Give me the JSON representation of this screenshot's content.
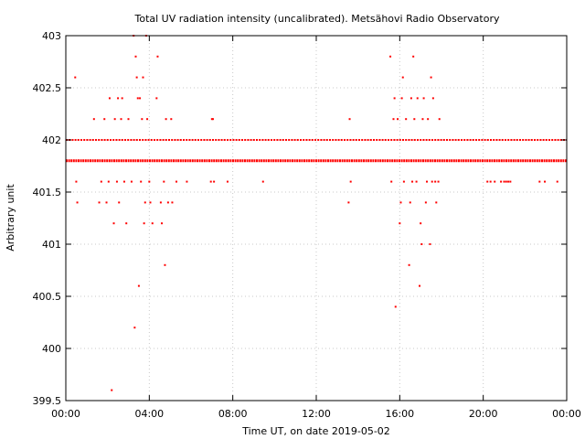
{
  "chart_data": {
    "type": "scatter",
    "title": "Total UV radiation intensity (uncalibrated). Metsähovi Radio Observatory",
    "xlabel": "Time UT, on date 2019-05-02",
    "ylabel": "Arbitrary unit",
    "x_unit": "hours UT",
    "xlim": [
      0,
      24
    ],
    "ylim": [
      399.5,
      403
    ],
    "x_ticks": [
      {
        "value": 0,
        "label": "00:00"
      },
      {
        "value": 4,
        "label": "04:00"
      },
      {
        "value": 8,
        "label": "08:00"
      },
      {
        "value": 12,
        "label": "12:00"
      },
      {
        "value": 16,
        "label": "16:00"
      },
      {
        "value": 20,
        "label": "20:00"
      },
      {
        "value": 24,
        "label": "00:00"
      }
    ],
    "y_ticks": [
      {
        "value": 399.5,
        "label": "399.5"
      },
      {
        "value": 400,
        "label": "400"
      },
      {
        "value": 400.5,
        "label": "400.5"
      },
      {
        "value": 401,
        "label": "401"
      },
      {
        "value": 401.5,
        "label": "401.5"
      },
      {
        "value": 402,
        "label": "402"
      },
      {
        "value": 402.5,
        "label": "402.5"
      },
      {
        "value": 403,
        "label": "403"
      }
    ],
    "grid": true,
    "marker_color": "#ff0000",
    "series": [
      {
        "continuous_levels": [
          {
            "y": 401.8,
            "x_range": [
              0,
              24
            ]
          },
          {
            "y": 402.0,
            "x_range": [
              0,
              24
            ]
          }
        ],
        "points": [
          {
            "x": 0.45,
            "y": 402.6
          },
          {
            "x": 0.5,
            "y": 401.6
          },
          {
            "x": 0.55,
            "y": 401.4
          },
          {
            "x": 1.35,
            "y": 402.2
          },
          {
            "x": 1.6,
            "y": 401.4
          },
          {
            "x": 1.7,
            "y": 401.6
          },
          {
            "x": 1.85,
            "y": 402.2
          },
          {
            "x": 1.95,
            "y": 401.4
          },
          {
            "x": 2.05,
            "y": 401.6
          },
          {
            "x": 2.1,
            "y": 402.4
          },
          {
            "x": 2.2,
            "y": 399.6
          },
          {
            "x": 2.3,
            "y": 401.2
          },
          {
            "x": 2.35,
            "y": 402.2
          },
          {
            "x": 2.45,
            "y": 401.6
          },
          {
            "x": 2.5,
            "y": 402.4
          },
          {
            "x": 2.55,
            "y": 401.4
          },
          {
            "x": 2.65,
            "y": 402.2
          },
          {
            "x": 2.7,
            "y": 402.4
          },
          {
            "x": 2.8,
            "y": 401.6
          },
          {
            "x": 2.9,
            "y": 401.2
          },
          {
            "x": 3.0,
            "y": 402.2
          },
          {
            "x": 3.15,
            "y": 401.6
          },
          {
            "x": 3.25,
            "y": 403.0
          },
          {
            "x": 3.3,
            "y": 400.2
          },
          {
            "x": 3.35,
            "y": 402.8
          },
          {
            "x": 3.4,
            "y": 402.6
          },
          {
            "x": 3.45,
            "y": 402.4
          },
          {
            "x": 3.5,
            "y": 400.6
          },
          {
            "x": 3.55,
            "y": 402.4
          },
          {
            "x": 3.6,
            "y": 401.6
          },
          {
            "x": 3.65,
            "y": 402.2
          },
          {
            "x": 3.7,
            "y": 402.6
          },
          {
            "x": 3.75,
            "y": 401.2
          },
          {
            "x": 3.8,
            "y": 401.4
          },
          {
            "x": 3.85,
            "y": 403.0
          },
          {
            "x": 3.9,
            "y": 402.2
          },
          {
            "x": 4.0,
            "y": 401.6
          },
          {
            "x": 4.05,
            "y": 401.4
          },
          {
            "x": 4.15,
            "y": 401.2
          },
          {
            "x": 4.35,
            "y": 402.4
          },
          {
            "x": 4.4,
            "y": 402.8
          },
          {
            "x": 4.55,
            "y": 401.4
          },
          {
            "x": 4.6,
            "y": 401.2
          },
          {
            "x": 4.7,
            "y": 401.6
          },
          {
            "x": 4.75,
            "y": 400.8
          },
          {
            "x": 4.8,
            "y": 402.2
          },
          {
            "x": 4.9,
            "y": 401.4
          },
          {
            "x": 5.05,
            "y": 402.2
          },
          {
            "x": 5.1,
            "y": 401.4
          },
          {
            "x": 5.3,
            "y": 401.6
          },
          {
            "x": 5.8,
            "y": 401.6
          },
          {
            "x": 6.95,
            "y": 401.6
          },
          {
            "x": 7.0,
            "y": 402.2
          },
          {
            "x": 7.05,
            "y": 402.2
          },
          {
            "x": 7.1,
            "y": 401.6
          },
          {
            "x": 7.75,
            "y": 401.6
          },
          {
            "x": 9.45,
            "y": 401.6
          },
          {
            "x": 13.55,
            "y": 401.4
          },
          {
            "x": 13.6,
            "y": 402.2
          },
          {
            "x": 13.65,
            "y": 401.6
          },
          {
            "x": 15.55,
            "y": 402.8
          },
          {
            "x": 15.6,
            "y": 401.6
          },
          {
            "x": 15.7,
            "y": 402.2
          },
          {
            "x": 15.75,
            "y": 402.4
          },
          {
            "x": 15.8,
            "y": 400.4
          },
          {
            "x": 15.9,
            "y": 402.2
          },
          {
            "x": 16.0,
            "y": 401.2
          },
          {
            "x": 16.05,
            "y": 401.4
          },
          {
            "x": 16.1,
            "y": 402.4
          },
          {
            "x": 16.15,
            "y": 402.6
          },
          {
            "x": 16.2,
            "y": 401.6
          },
          {
            "x": 16.3,
            "y": 402.2
          },
          {
            "x": 16.45,
            "y": 400.8
          },
          {
            "x": 16.5,
            "y": 401.4
          },
          {
            "x": 16.55,
            "y": 402.4
          },
          {
            "x": 16.6,
            "y": 401.6
          },
          {
            "x": 16.65,
            "y": 402.8
          },
          {
            "x": 16.7,
            "y": 402.2
          },
          {
            "x": 16.8,
            "y": 401.6
          },
          {
            "x": 16.85,
            "y": 402.4
          },
          {
            "x": 16.95,
            "y": 400.6
          },
          {
            "x": 17.0,
            "y": 401.2
          },
          {
            "x": 17.05,
            "y": 401.0
          },
          {
            "x": 17.1,
            "y": 402.2
          },
          {
            "x": 17.15,
            "y": 402.4
          },
          {
            "x": 17.25,
            "y": 401.4
          },
          {
            "x": 17.3,
            "y": 401.6
          },
          {
            "x": 17.35,
            "y": 402.2
          },
          {
            "x": 17.45,
            "y": 401.0
          },
          {
            "x": 17.5,
            "y": 402.6
          },
          {
            "x": 17.55,
            "y": 401.6
          },
          {
            "x": 17.6,
            "y": 402.4
          },
          {
            "x": 17.7,
            "y": 401.6
          },
          {
            "x": 17.75,
            "y": 401.4
          },
          {
            "x": 17.85,
            "y": 401.6
          },
          {
            "x": 17.9,
            "y": 402.2
          },
          {
            "x": 20.2,
            "y": 401.6
          },
          {
            "x": 20.35,
            "y": 401.6
          },
          {
            "x": 20.55,
            "y": 401.6
          },
          {
            "x": 20.85,
            "y": 401.6
          },
          {
            "x": 21.0,
            "y": 401.6
          },
          {
            "x": 21.1,
            "y": 401.6
          },
          {
            "x": 21.2,
            "y": 401.6
          },
          {
            "x": 21.3,
            "y": 401.6
          },
          {
            "x": 22.7,
            "y": 401.6
          },
          {
            "x": 22.95,
            "y": 401.6
          },
          {
            "x": 23.55,
            "y": 401.6
          }
        ]
      }
    ]
  }
}
